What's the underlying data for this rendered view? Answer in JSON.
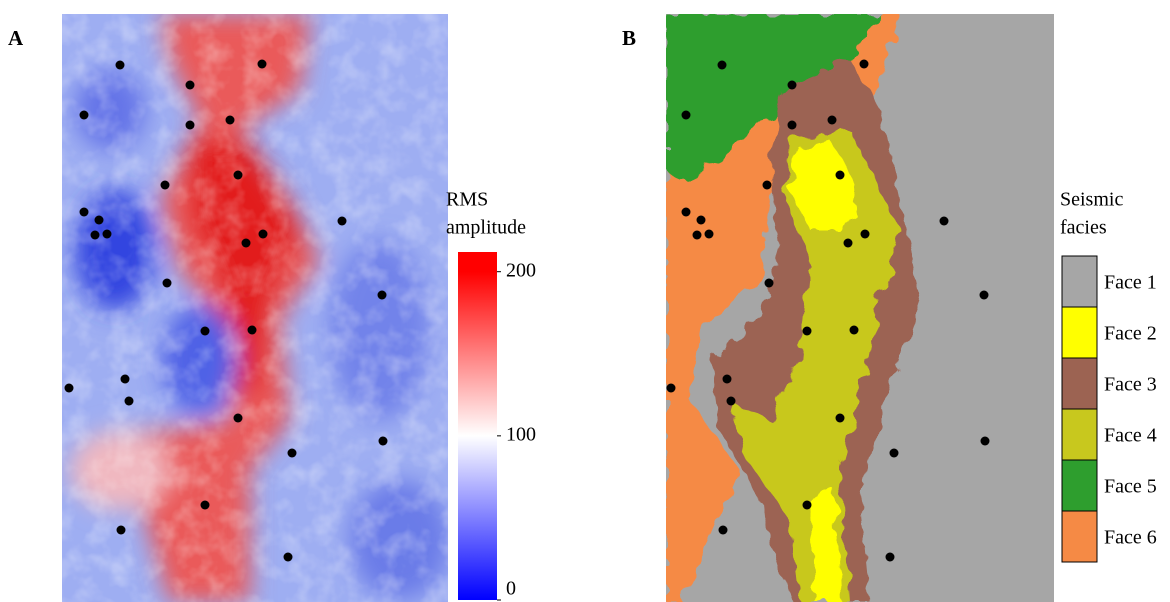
{
  "panels": [
    {
      "label": "A",
      "colorbar": {
        "title": [
          "RMS",
          "amplitude"
        ],
        "lim": [
          0,
          212
        ],
        "ticks": [
          0,
          100,
          200
        ],
        "colors": [
          "#0000ff",
          "#ffffff",
          "#ff0000"
        ]
      }
    },
    {
      "label": "B",
      "legend": {
        "title": [
          "Seismic",
          "facies"
        ],
        "items": [
          {
            "label": "Face 1",
            "color": "#a6a6a6"
          },
          {
            "label": "Face 2",
            "color": "#ffff00"
          },
          {
            "label": "Face 3",
            "color": "#9c6352"
          },
          {
            "label": "Face 4",
            "color": "#c8c81e"
          },
          {
            "label": "Face 5",
            "color": "#2e9e2e"
          },
          {
            "label": "Face 6",
            "color": "#f58a45"
          }
        ]
      }
    }
  ]
}
